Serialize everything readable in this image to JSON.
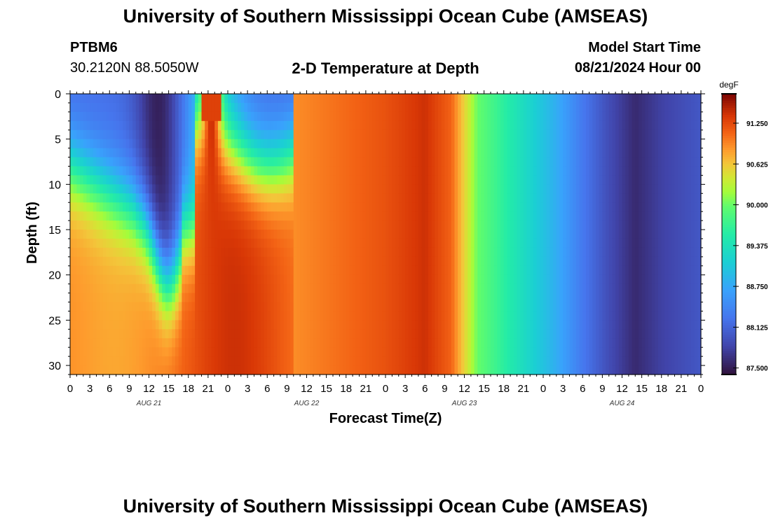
{
  "header": {
    "title": "University of Southern Mississippi Ocean Cube (AMSEAS)",
    "station_id": "PTBM6",
    "station_coords": "30.2120N  88.5050W",
    "plot_title": "2-D Temperature at Depth",
    "model_start_label": "Model Start Time",
    "model_start_value": "08/21/2024 Hour 00"
  },
  "footer": {
    "title": "University of Southern Mississippi Ocean Cube (AMSEAS)"
  },
  "chart_data": {
    "type": "heatmap",
    "title": "2-D Temperature at Depth",
    "xlabel": "Forecast Time(Z)",
    "ylabel": "Depth (ft)",
    "x_hours_range": [
      0,
      96
    ],
    "y_range": [
      0,
      31
    ],
    "y_ticks": [
      "0",
      "5",
      "10",
      "15",
      "20",
      "25",
      "30"
    ],
    "y_tick_values": [
      0,
      5,
      10,
      15,
      20,
      25,
      30
    ],
    "x_tick_labels": [
      "0",
      "3",
      "6",
      "9",
      "12",
      "15",
      "18",
      "21",
      "0",
      "3",
      "6",
      "9",
      "12",
      "15",
      "18",
      "21",
      "0",
      "3",
      "6",
      "9",
      "12",
      "15",
      "18",
      "21",
      "0",
      "3",
      "6",
      "9",
      "12",
      "15",
      "18",
      "21",
      "0"
    ],
    "date_labels": [
      {
        "label": "AUG 21",
        "hour": 12
      },
      {
        "label": "AUG 22",
        "hour": 36
      },
      {
        "label": "AUG 23",
        "hour": 60
      },
      {
        "label": "AUG 24",
        "hour": 84
      }
    ],
    "colorbar": {
      "unit": "degF",
      "min": 87.4,
      "max": 91.7,
      "ticks": [
        "91.250",
        "90.625",
        "90.000",
        "89.375",
        "88.750",
        "88.125",
        "87.500"
      ],
      "tick_values": [
        91.25,
        90.625,
        90.0,
        89.375,
        88.75,
        88.125,
        87.5
      ]
    },
    "grid": true
  }
}
